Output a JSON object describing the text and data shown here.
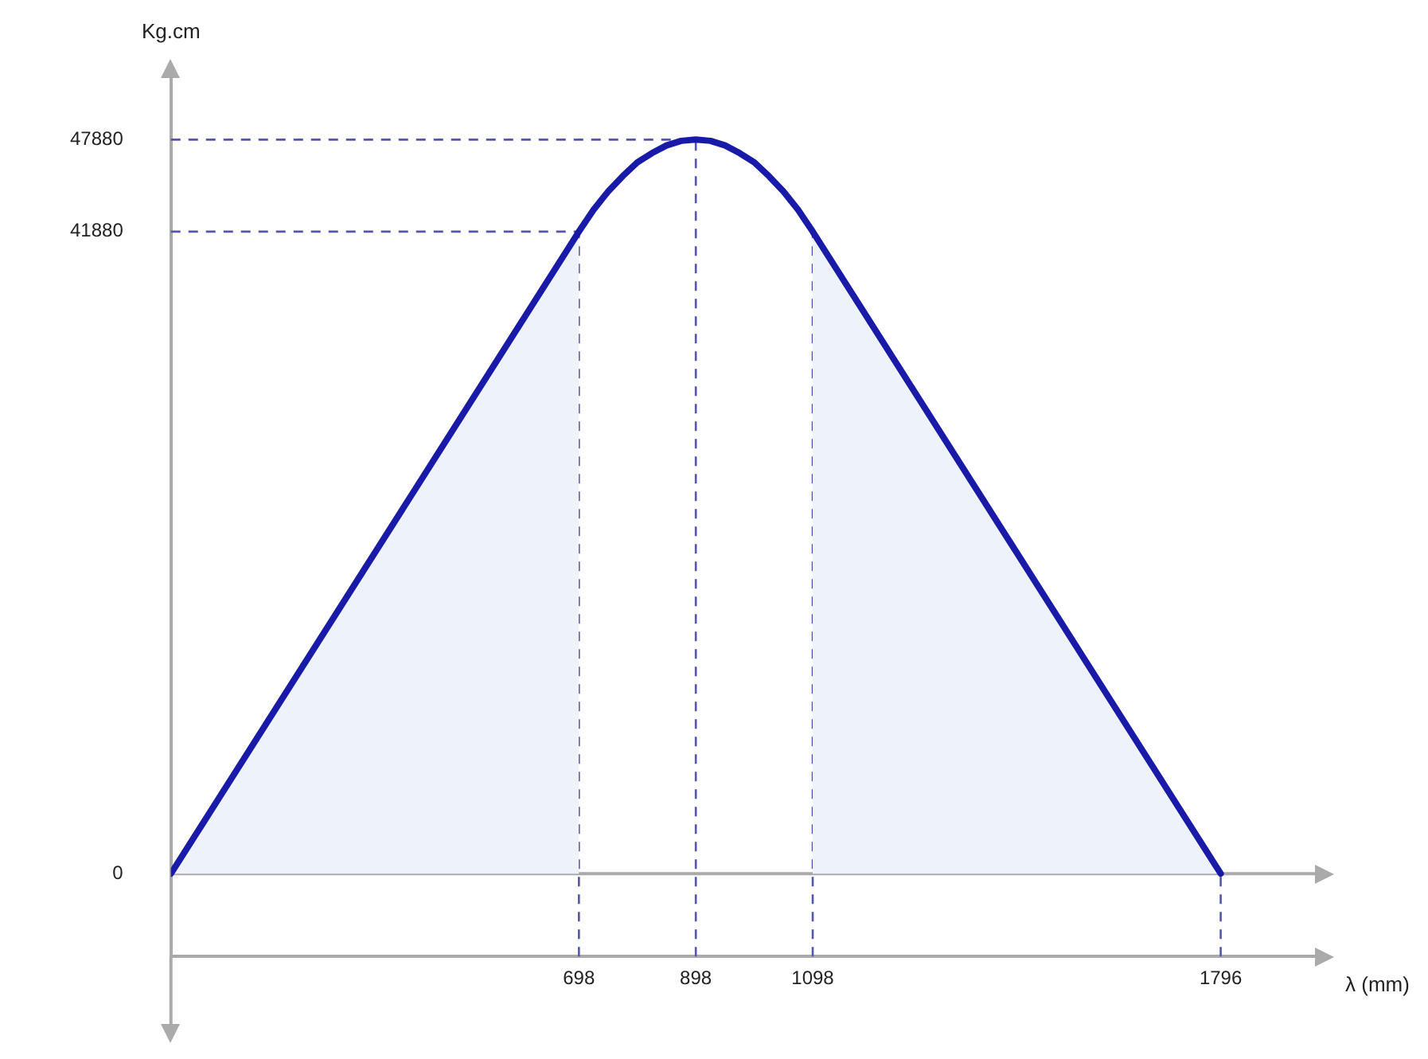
{
  "chart_data": {
    "type": "line",
    "ylabel": "Kg.cm",
    "xlabel": "λ (mm)",
    "xlim": [
      0,
      1960
    ],
    "xticks": [
      698,
      898,
      1098,
      1796
    ],
    "ylim": [
      -5400,
      52000
    ],
    "yticks": [
      0,
      41880,
      47880
    ],
    "grid": false,
    "legend": false,
    "marker": "none",
    "line_style": "solid",
    "series": [
      {
        "type": "area",
        "color": "#eef3fb",
        "x": [
          0,
          698
        ],
        "values": [
          0,
          41880
        ]
      },
      {
        "type": "area",
        "color": "#eef3fb",
        "x": [
          1098,
          1796
        ],
        "values": [
          41880,
          0
        ]
      },
      {
        "type": "line",
        "color": "#1a1aa8",
        "x": [
          0,
          698,
          723,
          748,
          773,
          798,
          823,
          848,
          873,
          898,
          923,
          948,
          973,
          998,
          1023,
          1048,
          1073,
          1098,
          1796
        ],
        "values": [
          0,
          41880,
          43300,
          44500,
          45500,
          46400,
          47000,
          47500,
          47800,
          47880,
          47800,
          47500,
          47000,
          46400,
          45500,
          44500,
          43300,
          41880,
          0
        ]
      }
    ],
    "ref_lines": [
      {
        "axis": "y",
        "value": 0,
        "color": "#aaaaaa",
        "line_style": "solid"
      },
      {
        "axis": "y",
        "value": 47880,
        "color": "#5555aa",
        "line_style": "dashed"
      },
      {
        "axis": "y",
        "value": 41880,
        "color": "#5555aa",
        "line_style": "dashed"
      },
      {
        "axis": "x",
        "value": 698,
        "color": "#5555aa",
        "line_style": "dashed"
      },
      {
        "axis": "x",
        "value": 898,
        "color": "#5555aa",
        "line_style": "dashed"
      },
      {
        "axis": "x",
        "value": 1098,
        "color": "#5555aa",
        "line_style": "dashed"
      },
      {
        "axis": "x",
        "value": 1796,
        "color": "#5555aa",
        "line_style": "dashed"
      }
    ]
  }
}
